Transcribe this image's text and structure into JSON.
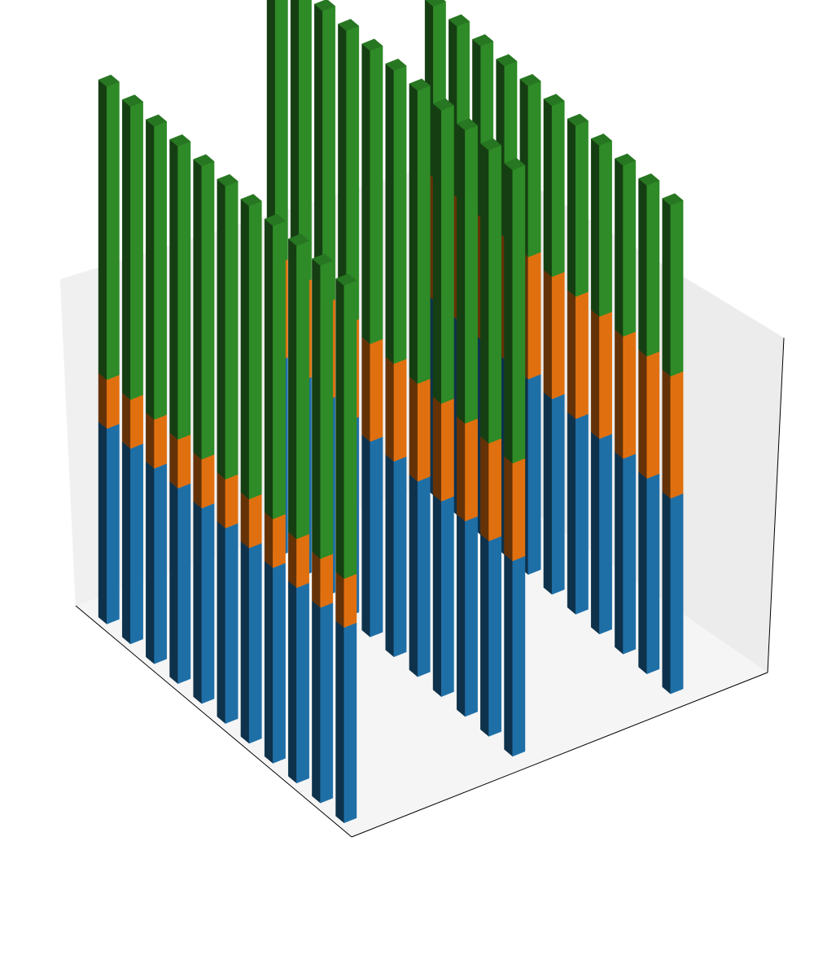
{
  "chart_data": {
    "type": "bar3d-stacked",
    "title": "",
    "xlabel": "",
    "ylabel": "",
    "zlabel": "",
    "axes_visible": false,
    "grid": false,
    "legend": "none",
    "groups": [
      0,
      1,
      2
    ],
    "bars_per_group": 11,
    "stack_layers": [
      "bottom",
      "middle",
      "top"
    ],
    "group_totals": [
      11.0,
      12.0,
      10.0
    ],
    "group_segments": [
      {
        "bottom": 4.0,
        "middle": 1.0,
        "top": 6.0
      },
      {
        "bottom": 4.0,
        "middle": 2.0,
        "top": 6.0
      },
      {
        "bottom": 4.0,
        "middle": 2.5,
        "top": 3.5
      }
    ],
    "zlim": [
      0,
      12
    ],
    "colors": {
      "bottom": "#1f6fa7",
      "middle": "#e0700f",
      "top": "#2e8b27",
      "pane_back": "#f0f0f0",
      "pane_floor": "#f5f5f5",
      "axis_line": "#000000"
    }
  }
}
